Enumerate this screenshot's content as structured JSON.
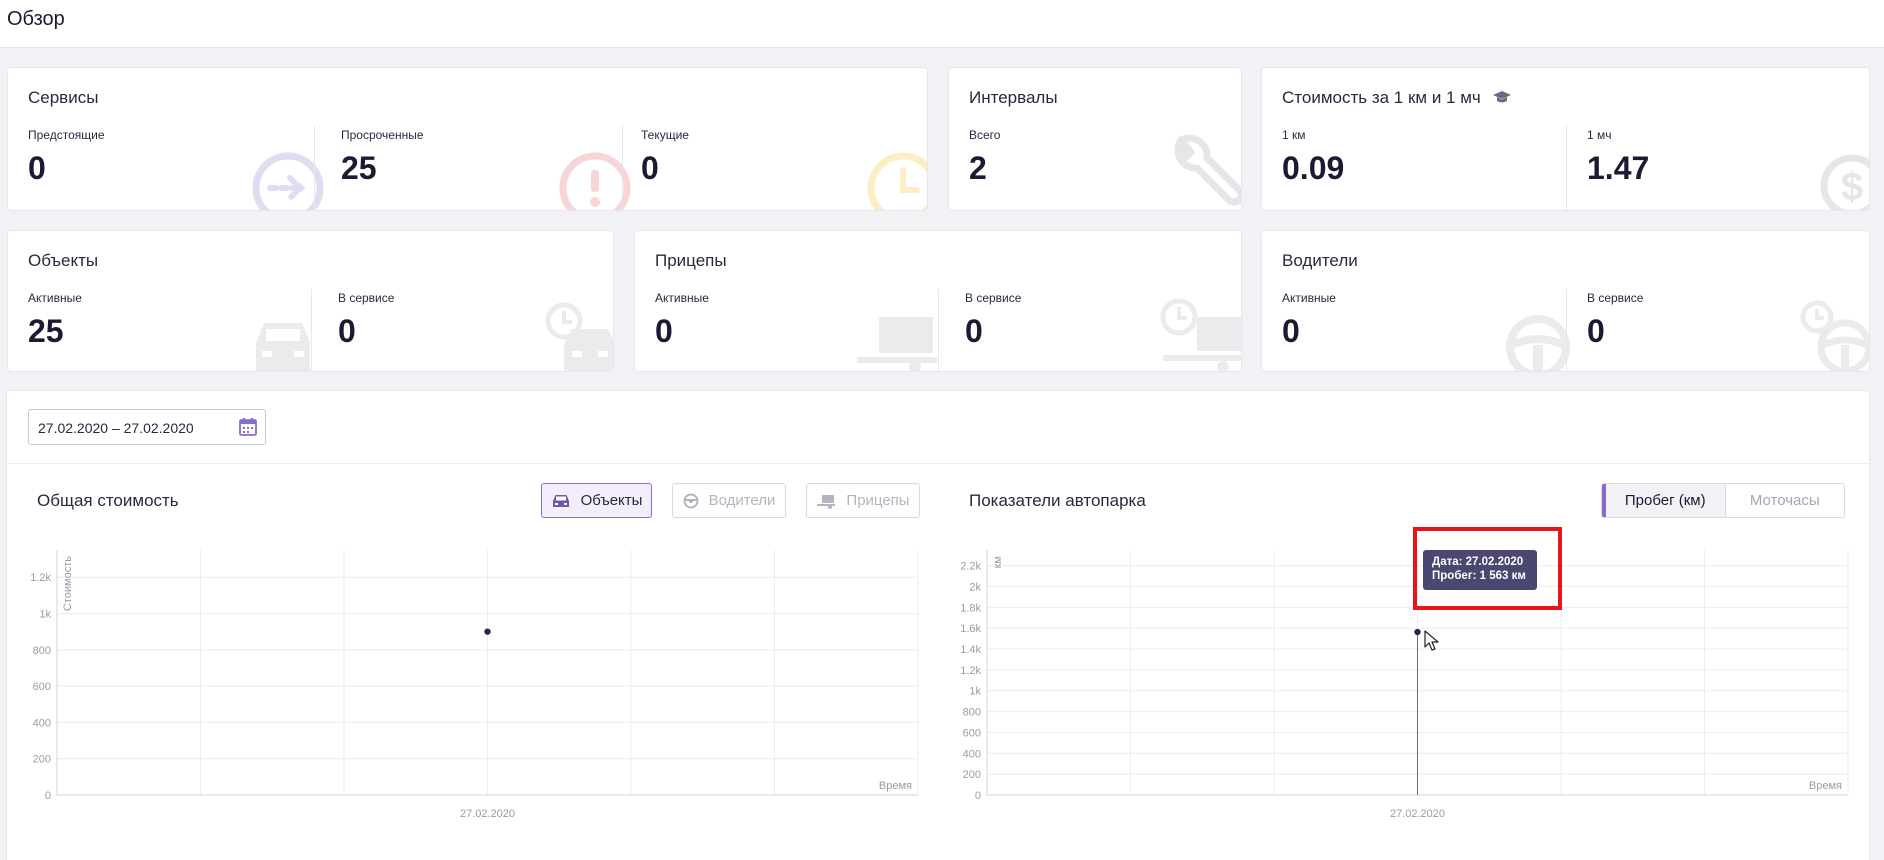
{
  "page": {
    "title": "Обзор"
  },
  "services": {
    "title": "Сервисы",
    "metrics": [
      {
        "label": "Предстоящие",
        "value": "0"
      },
      {
        "label": "Просроченные",
        "value": "25"
      },
      {
        "label": "Текущие",
        "value": "0"
      }
    ]
  },
  "intervals": {
    "title": "Интервалы",
    "metrics": [
      {
        "label": "Всего",
        "value": "2"
      }
    ]
  },
  "cost": {
    "title": "Стоимость за 1 км и 1 мч",
    "metrics": [
      {
        "label": "1 км",
        "value": "0.09"
      },
      {
        "label": "1 мч",
        "value": "1.47"
      }
    ]
  },
  "objects": {
    "title": "Объекты",
    "metrics": [
      {
        "label": "Активные",
        "value": "25"
      },
      {
        "label": "В сервисе",
        "value": "0"
      }
    ]
  },
  "trailers": {
    "title": "Прицепы",
    "metrics": [
      {
        "label": "Активные",
        "value": "0"
      },
      {
        "label": "В сервисе",
        "value": "0"
      }
    ]
  },
  "drivers": {
    "title": "Водители",
    "metrics": [
      {
        "label": "Активные",
        "value": "0"
      },
      {
        "label": "В сервисе",
        "value": "0"
      }
    ]
  },
  "filters": {
    "date_range": "27.02.2020 – 27.02.2020"
  },
  "total_cost": {
    "title": "Общая стоимость",
    "buttons": {
      "objects": "Объекты",
      "drivers": "Водители",
      "trailers": "Прицепы"
    }
  },
  "fleet": {
    "title": "Показатели автопарка",
    "toggles": {
      "mileage": "Пробег (км)",
      "engine_hours": "Моточасы"
    },
    "tooltip": {
      "date": "Дата: 27.02.2020",
      "mileage": "Пробег: 1 563 км"
    }
  },
  "chart_data": [
    {
      "type": "scatter",
      "title": "Общая стоимость",
      "ylabel": "Стоимость",
      "xlabel": "Время",
      "x": [
        "27.02.2020"
      ],
      "y": [
        900
      ],
      "y_ticks": [
        "0",
        "200",
        "400",
        "600",
        "800",
        "1k",
        "1.2k"
      ],
      "y_tick_values": [
        0,
        200,
        400,
        600,
        800,
        1000,
        1200
      ],
      "ylim": [
        0,
        1350
      ],
      "point_color": "#2b2555"
    },
    {
      "type": "scatter",
      "title": "Показатели автопарка",
      "ylabel": "км",
      "xlabel": "Время",
      "x": [
        "27.02.2020"
      ],
      "y": [
        1563
      ],
      "y_ticks": [
        "0",
        "200",
        "400",
        "600",
        "800",
        "1k",
        "1.2k",
        "1.4k",
        "1.6k",
        "1.8k",
        "2k",
        "2.2k"
      ],
      "y_tick_values": [
        0,
        200,
        400,
        600,
        800,
        1000,
        1200,
        1400,
        1600,
        1800,
        2000,
        2200
      ],
      "ylim": [
        0,
        2350
      ],
      "point_color": "#2b2555"
    }
  ]
}
